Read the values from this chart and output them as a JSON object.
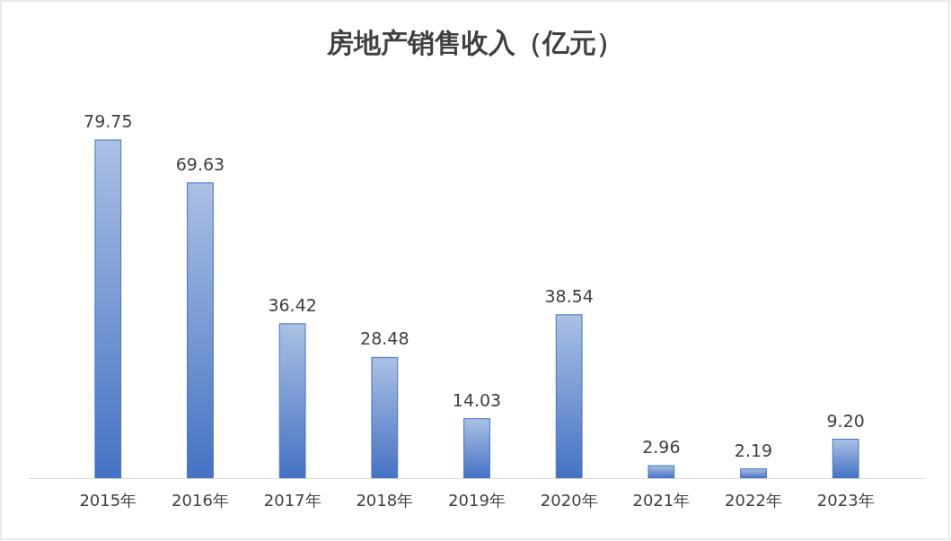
{
  "chart_data": {
    "type": "bar",
    "title": "房地产销售收入（亿元）",
    "categories": [
      "2015年",
      "2016年",
      "2017年",
      "2018年",
      "2019年",
      "2020年",
      "2021年",
      "2022年",
      "2023年"
    ],
    "values": [
      79.75,
      69.63,
      36.42,
      28.48,
      14.03,
      38.54,
      2.96,
      2.19,
      9.2
    ],
    "value_labels": [
      "79.75",
      "69.63",
      "36.42",
      "28.48",
      "14.03",
      "38.54",
      "2.96",
      "2.19",
      "9.20"
    ],
    "color": "#4472c4",
    "grid": false
  }
}
